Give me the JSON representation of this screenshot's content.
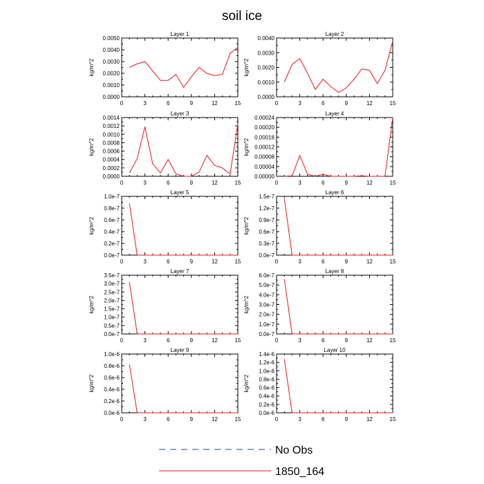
{
  "figure": {
    "title": "soil ice",
    "legend": [
      {
        "label": "No Obs",
        "color": "#2b3f8f",
        "dash": true
      },
      {
        "label": "1850_164",
        "color": "#e8161c",
        "dash": false
      }
    ]
  },
  "chart_data": [
    {
      "type": "line",
      "title": "Layer 1",
      "ylabel": "kg/m^2",
      "xlim": [
        0,
        15
      ],
      "xticks": [
        "0",
        "3",
        "6",
        "9",
        "12",
        "15"
      ],
      "ylim": [
        0,
        0.005
      ],
      "yticks": [
        "0.0000",
        "0.0010",
        "0.0020",
        "0.0030",
        "0.0040",
        "0.0050"
      ],
      "series": [
        {
          "color": "#e8161c",
          "x": [
            1,
            2,
            3,
            4,
            5,
            6,
            7,
            8,
            9,
            10,
            11,
            12,
            13,
            14,
            15
          ],
          "y": [
            0.0025,
            0.0028,
            0.003,
            0.0022,
            0.0014,
            0.0014,
            0.0019,
            0.0008,
            0.0017,
            0.0025,
            0.002,
            0.0018,
            0.0019,
            0.0037,
            0.0042
          ]
        }
      ]
    },
    {
      "type": "line",
      "title": "Layer 2",
      "ylabel": "kg/m^2",
      "xlim": [
        0,
        15
      ],
      "xticks": [
        "0",
        "3",
        "6",
        "9",
        "12",
        "15"
      ],
      "ylim": [
        0,
        0.004
      ],
      "yticks": [
        "0.0000",
        "0.0010",
        "0.0020",
        "0.0030",
        "0.0040"
      ],
      "series": [
        {
          "color": "#e8161c",
          "x": [
            1,
            2,
            3,
            4,
            5,
            6,
            7,
            8,
            9,
            10,
            11,
            12,
            13,
            14,
            15
          ],
          "y": [
            0.001,
            0.0022,
            0.0026,
            0.0016,
            0.0005,
            0.0012,
            0.0007,
            0.0003,
            0.0006,
            0.0012,
            0.0019,
            0.0018,
            0.0009,
            0.0018,
            0.0038
          ]
        }
      ]
    },
    {
      "type": "line",
      "title": "Layer 3",
      "ylabel": "kg/m^2",
      "xlim": [
        0,
        15
      ],
      "xticks": [
        "0",
        "3",
        "6",
        "9",
        "12",
        "15"
      ],
      "ylim": [
        0,
        0.0014
      ],
      "yticks": [
        "0.0000",
        "0.0002",
        "0.0004",
        "0.0006",
        "0.0008",
        "0.0010",
        "0.0012",
        "0.0014"
      ],
      "series": [
        {
          "color": "#e8161c",
          "x": [
            1,
            2,
            3,
            4,
            5,
            6,
            7,
            8,
            9,
            10,
            11,
            12,
            13,
            14,
            15
          ],
          "y": [
            8e-05,
            0.00042,
            0.00118,
            0.0003,
            8e-05,
            0.0004,
            6e-05,
            0.0,
            0.0,
            0.0001,
            0.0005,
            0.00026,
            0.0002,
            5e-05,
            0.00125
          ]
        }
      ]
    },
    {
      "type": "line",
      "title": "Layer 4",
      "ylabel": "kg/m^2",
      "xlim": [
        0,
        15
      ],
      "xticks": [
        "0",
        "3",
        "6",
        "9",
        "12",
        "15"
      ],
      "ylim": [
        0,
        0.00024
      ],
      "yticks": [
        "0.00000",
        "0.00004",
        "0.00008",
        "0.00012",
        "0.00016",
        "0.00020",
        "0.00024"
      ],
      "series": [
        {
          "color": "#e8161c",
          "x": [
            1,
            2,
            3,
            4,
            5,
            6,
            7,
            8,
            9,
            10,
            11,
            12,
            13,
            14,
            15
          ],
          "y": [
            0.0,
            2e-06,
            8.5e-05,
            8e-06,
            0.0,
            8e-06,
            0.0,
            0.0,
            0.0,
            0.0,
            2e-06,
            0.0,
            0.0,
            0.0,
            0.00024
          ]
        }
      ]
    },
    {
      "type": "line",
      "title": "Layer 5",
      "ylabel": "kg/m^2",
      "xlim": [
        0,
        15
      ],
      "xticks": [
        "0",
        "3",
        "6",
        "9",
        "12",
        "15"
      ],
      "ylim": [
        0,
        1e-07
      ],
      "yticks": [
        "0.0e-7",
        "0.2e-7",
        "0.4e-7",
        "0.6e-7",
        "0.8e-7",
        "1.0e-7"
      ],
      "series": [
        {
          "color": "#e8161c",
          "x": [
            1,
            2,
            3,
            4,
            5,
            6,
            7,
            8,
            9,
            10,
            11,
            12,
            13,
            14,
            15
          ],
          "y": [
            8.8e-08,
            0,
            0,
            0,
            0,
            0,
            0,
            0,
            0,
            0,
            0,
            0,
            0,
            0,
            0
          ]
        }
      ]
    },
    {
      "type": "line",
      "title": "Layer 6",
      "ylabel": "kg/m^2",
      "xlim": [
        0,
        15
      ],
      "xticks": [
        "0",
        "3",
        "6",
        "9",
        "12",
        "15"
      ],
      "ylim": [
        0,
        1.5e-07
      ],
      "yticks": [
        "0.0e-7",
        "0.3e-7",
        "0.6e-7",
        "0.9e-7",
        "1.2e-7",
        "1.5e-7"
      ],
      "series": [
        {
          "color": "#e8161c",
          "x": [
            1,
            2,
            3,
            4,
            5,
            6,
            7,
            8,
            9,
            10,
            11,
            12,
            13,
            14,
            15
          ],
          "y": [
            1.45e-07,
            0,
            0,
            0,
            0,
            0,
            0,
            0,
            0,
            0,
            0,
            0,
            0,
            0,
            0
          ]
        }
      ]
    },
    {
      "type": "line",
      "title": "Layer 7",
      "ylabel": "kg/m^2",
      "xlim": [
        0,
        15
      ],
      "xticks": [
        "0",
        "3",
        "6",
        "9",
        "12",
        "15"
      ],
      "ylim": [
        0,
        3.5e-07
      ],
      "yticks": [
        "0.0e-7",
        "0.5e-7",
        "1.0e-7",
        "1.5e-7",
        "2.0e-7",
        "2.5e-7",
        "3.0e-7",
        "3.5e-7"
      ],
      "series": [
        {
          "color": "#e8161c",
          "x": [
            1,
            2,
            3,
            4,
            5,
            6,
            7,
            8,
            9,
            10,
            11,
            12,
            13,
            14,
            15
          ],
          "y": [
            3.1e-07,
            0,
            0,
            0,
            0,
            0,
            0,
            0,
            0,
            0,
            0,
            0,
            0,
            0,
            0
          ]
        }
      ]
    },
    {
      "type": "line",
      "title": "Layer 8",
      "ylabel": "kg/m^2",
      "xlim": [
        0,
        15
      ],
      "xticks": [
        "0",
        "3",
        "6",
        "9",
        "12",
        "15"
      ],
      "ylim": [
        0,
        6e-07
      ],
      "yticks": [
        "0.0e-7",
        "1.0e-7",
        "2.0e-7",
        "3.0e-7",
        "4.0e-7",
        "5.0e-7",
        "6.0e-7"
      ],
      "series": [
        {
          "color": "#e8161c",
          "x": [
            1,
            2,
            3,
            4,
            5,
            6,
            7,
            8,
            9,
            10,
            11,
            12,
            13,
            14,
            15
          ],
          "y": [
            5.6e-07,
            0,
            0,
            0,
            0,
            0,
            0,
            0,
            0,
            0,
            0,
            0,
            0,
            0,
            0
          ]
        }
      ]
    },
    {
      "type": "line",
      "title": "Layer 9",
      "ylabel": "kg/m^2",
      "xlim": [
        0,
        15
      ],
      "xticks": [
        "0",
        "3",
        "6",
        "9",
        "12",
        "15"
      ],
      "ylim": [
        0,
        1e-06
      ],
      "yticks": [
        "0.0e-6",
        "0.2e-6",
        "0.4e-6",
        "0.6e-6",
        "0.8e-6",
        "1.0e-6"
      ],
      "series": [
        {
          "color": "#e8161c",
          "x": [
            1,
            2,
            3,
            4,
            5,
            6,
            7,
            8,
            9,
            10,
            11,
            12,
            13,
            14,
            15
          ],
          "y": [
            8.2e-07,
            0,
            0,
            0,
            0,
            0,
            0,
            0,
            0,
            0,
            0,
            0,
            0,
            0,
            0
          ]
        }
      ]
    },
    {
      "type": "line",
      "title": "Layer 10",
      "ylabel": "kg/m^2",
      "xlim": [
        0,
        15
      ],
      "xticks": [
        "0",
        "3",
        "6",
        "9",
        "12",
        "15"
      ],
      "ylim": [
        0,
        1.4e-06
      ],
      "yticks": [
        "0.0e-6",
        "0.2e-6",
        "0.4e-6",
        "0.6e-6",
        "0.8e-6",
        "1.0e-6",
        "1.2e-6",
        "1.4e-6"
      ],
      "series": [
        {
          "color": "#e8161c",
          "x": [
            1,
            2,
            3,
            4,
            5,
            6,
            7,
            8,
            9,
            10,
            11,
            12,
            13,
            14,
            15
          ],
          "y": [
            1.28e-06,
            0,
            0,
            0,
            0,
            0,
            0,
            0,
            0,
            0,
            0,
            0,
            0,
            0,
            0
          ]
        }
      ]
    }
  ]
}
